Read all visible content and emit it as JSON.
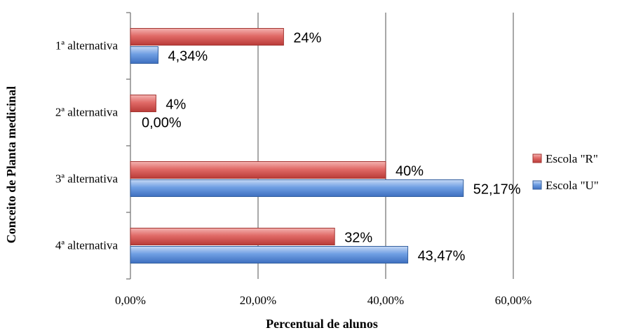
{
  "chart_data": {
    "type": "bar",
    "orientation": "horizontal",
    "categories": [
      "1ª alternativa",
      "2ª alternativa",
      "3ª alternativa",
      "4ª alternativa"
    ],
    "series": [
      {
        "name": "Escola \"R\"",
        "color": "#d9534f",
        "values": [
          24,
          4,
          40,
          32
        ],
        "labels": [
          "24%",
          "4%",
          "40%",
          "32%"
        ]
      },
      {
        "name": "Escola \"U\"",
        "color": "#4f86d9",
        "values": [
          4.34,
          0,
          52.17,
          43.47
        ],
        "labels": [
          "4,34%",
          "0,00%",
          "52,17%",
          "43,47%"
        ]
      }
    ],
    "xlabel": "Percentual de alunos",
    "ylabel": "Conceito de Planta medicinal",
    "xlim": [
      0,
      60
    ],
    "xticks": [
      0,
      20,
      40,
      60
    ],
    "xtick_labels": [
      "0,00%",
      "20,00%",
      "40,00%",
      "60,00%"
    ],
    "grid": "vertical",
    "legend_position": "right"
  }
}
